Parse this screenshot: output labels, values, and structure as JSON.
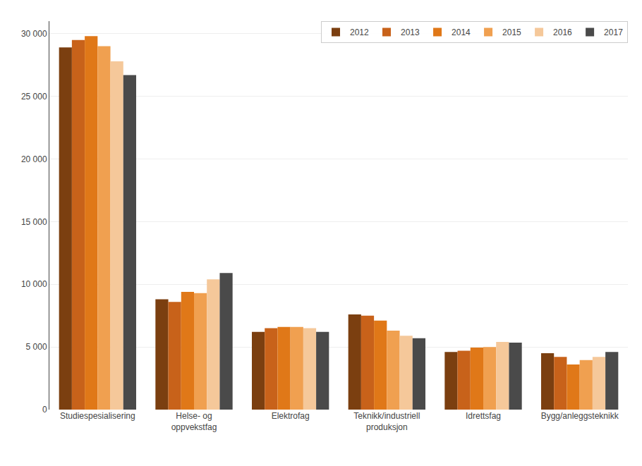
{
  "chart_data": {
    "type": "bar",
    "categories": [
      "Studiespesialisering",
      "Helse- og\noppvekstfag",
      "Elektrofag",
      "Teknikk/industriell\nproduksjon",
      "Idrettsfag",
      "Bygg/anleggsteknikk"
    ],
    "series": [
      {
        "name": "2012",
        "color": "#7B3F10",
        "values": [
          28900,
          8800,
          6200,
          7600,
          4600,
          4500
        ]
      },
      {
        "name": "2013",
        "color": "#C8621A",
        "values": [
          29500,
          8600,
          6500,
          7500,
          4700,
          4200
        ]
      },
      {
        "name": "2014",
        "color": "#E07818",
        "values": [
          29800,
          9400,
          6600,
          7100,
          4950,
          3600
        ]
      },
      {
        "name": "2015",
        "color": "#F0A050",
        "values": [
          29000,
          9300,
          6600,
          6300,
          5000,
          3950
        ]
      },
      {
        "name": "2016",
        "color": "#F5C89A",
        "values": [
          27800,
          10400,
          6500,
          5900,
          5400,
          4200
        ]
      },
      {
        "name": "2017",
        "color": "#4A4A4A",
        "values": [
          26700,
          10900,
          6200,
          5700,
          5350,
          4600
        ]
      }
    ],
    "ylim": [
      0,
      31000
    ],
    "yticks": [
      0,
      {
        "value": 5000,
        "label": "5 000"
      },
      {
        "value": 10000,
        "label": "10 000"
      },
      {
        "value": 15000,
        "label": "15 000"
      },
      {
        "value": 20000,
        "label": "20 000"
      },
      {
        "value": 25000,
        "label": "25 000"
      },
      {
        "value": 30000,
        "label": "30 000"
      }
    ],
    "grid": true,
    "legend": "upper right"
  }
}
